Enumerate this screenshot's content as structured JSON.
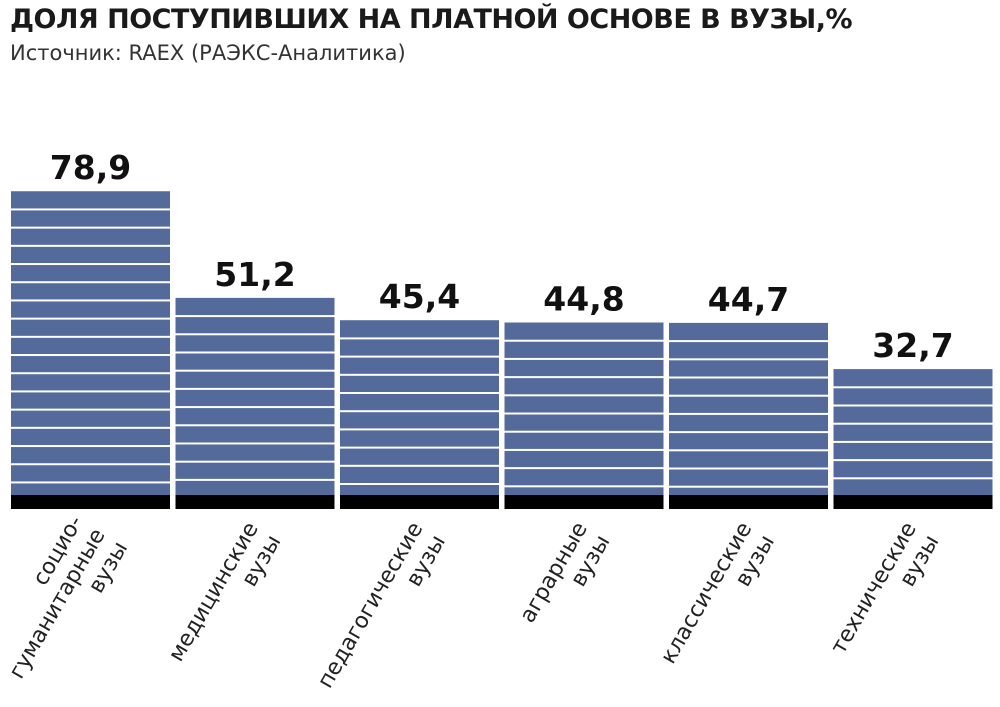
{
  "header": {
    "title": "ДОЛЯ ПОСТУПИВШИХ НА ПЛАТНОЙ ОСНОВЕ В ВУЗЫ,%",
    "source": "Источник: RAEX (РАЭКС-Аналитика)"
  },
  "colors": {
    "bar": "#536a9b",
    "stripe": "#ffffff",
    "base": "#000000"
  },
  "chart_data": {
    "type": "bar",
    "title": "ДОЛЯ ПОСТУПИВШИХ НА ПЛАТНОЙ ОСНОВЕ В ВУЗЫ,%",
    "categories": [
      [
        "социо-",
        "гуманитарные",
        "вузы"
      ],
      [
        "медицинские",
        "вузы"
      ],
      [
        "педагогические",
        "вузы"
      ],
      [
        "аграрные",
        "вузы"
      ],
      [
        "классические",
        "вузы"
      ],
      [
        "технические",
        "вузы"
      ]
    ],
    "values": [
      78.9,
      51.2,
      45.4,
      44.8,
      44.7,
      32.7
    ],
    "value_labels": [
      "78,9",
      "51,2",
      "45,4",
      "44,8",
      "44,7",
      "32,7"
    ],
    "ylim": [
      0,
      100
    ],
    "grid": false,
    "legend": "none"
  }
}
